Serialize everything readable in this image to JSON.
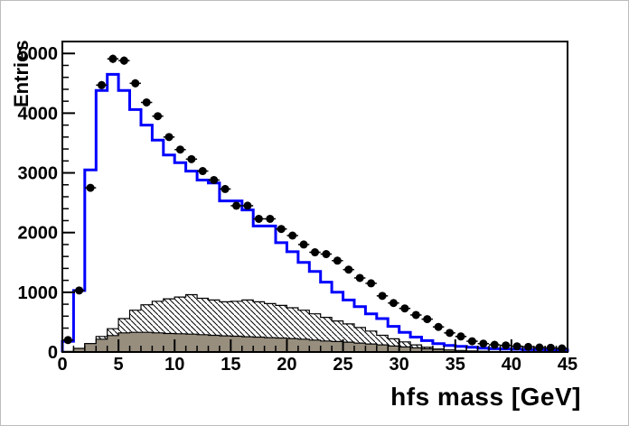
{
  "window": {
    "background": "#ffffff",
    "border_color": "#bdbdbd"
  },
  "chart_data": {
    "type": "histogram-composite",
    "title": "",
    "xlabel": "hfs mass [GeV]",
    "ylabel": "Entries",
    "xlim": [
      0,
      45
    ],
    "ylim": [
      0,
      5200
    ],
    "bin_width": 1,
    "x_major_ticks": [
      0,
      5,
      10,
      15,
      20,
      25,
      30,
      35,
      40,
      45
    ],
    "x_tick_labels": [
      "0",
      "5",
      "10",
      "15",
      "20",
      "25",
      "30",
      "35",
      "40",
      "45"
    ],
    "x_minor_step": 1,
    "y_major_ticks": [
      0,
      1000,
      2000,
      3000,
      4000,
      5000
    ],
    "y_tick_labels": [
      "0",
      "1000",
      "2000",
      "3000",
      "4000",
      "5000"
    ],
    "y_minor_step": 200,
    "grid": false,
    "legend": null,
    "colors": {
      "data_marker": "#000000",
      "mc_line": "#0000ff",
      "hatched_fill": "#ffffff",
      "hatched_stroke": "#000000",
      "gray_fill": "#978e7e",
      "frame": "#000000"
    },
    "series": [
      {
        "name": "background-hatched",
        "type": "hist-hatched",
        "values": [
          10,
          40,
          140,
          260,
          390,
          560,
          700,
          790,
          850,
          890,
          920,
          960,
          900,
          870,
          840,
          850,
          870,
          840,
          810,
          780,
          740,
          700,
          640,
          580,
          520,
          470,
          410,
          350,
          280,
          220,
          170,
          120,
          80,
          50,
          30,
          20,
          12,
          8,
          5,
          3,
          2,
          2,
          1,
          1,
          1
        ]
      },
      {
        "name": "background-gray",
        "type": "hist-filled",
        "values": [
          5,
          60,
          140,
          215,
          275,
          320,
          330,
          330,
          320,
          310,
          305,
          300,
          290,
          280,
          270,
          265,
          255,
          250,
          240,
          235,
          225,
          215,
          200,
          185,
          175,
          165,
          150,
          135,
          120,
          100,
          85,
          70,
          55,
          45,
          35,
          25,
          18,
          12,
          8,
          6,
          4,
          3,
          2,
          2,
          1
        ]
      },
      {
        "name": "mc-total",
        "type": "step-line",
        "values": [
          180,
          1030,
          3050,
          4380,
          4650,
          4380,
          4060,
          3800,
          3550,
          3300,
          3170,
          3030,
          2880,
          2830,
          2530,
          2530,
          2380,
          2110,
          2110,
          1830,
          1680,
          1500,
          1350,
          1170,
          1000,
          870,
          760,
          640,
          560,
          430,
          330,
          250,
          190,
          140,
          110,
          95,
          80,
          65,
          55,
          50,
          45,
          40,
          40,
          35,
          35
        ]
      },
      {
        "name": "data-points",
        "type": "scatter",
        "marker": "filled-circle",
        "values": [
          200,
          1030,
          2750,
          4470,
          4910,
          4880,
          4500,
          4180,
          3950,
          3600,
          3390,
          3230,
          3030,
          2880,
          2730,
          2450,
          2450,
          2230,
          2230,
          2060,
          1950,
          1800,
          1670,
          1640,
          1530,
          1380,
          1240,
          1150,
          940,
          820,
          730,
          620,
          550,
          420,
          320,
          260,
          180,
          140,
          120,
          110,
          95,
          85,
          75,
          70,
          60
        ]
      }
    ]
  }
}
